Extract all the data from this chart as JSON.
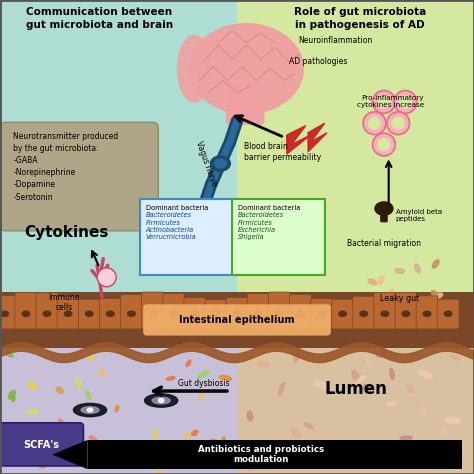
{
  "bg_left": "#aeddd4",
  "bg_right": "#d4e8a0",
  "title_left": "Communication between\ngut microbiota and brain",
  "title_right": "Role of gut microbiota\nin pathogenesis of AD",
  "nt_box_color": "#b0a080",
  "nt_text": "Neurotransmitter produced\nby the gut microbiota:\n-GABA\n-Norepinephrine\n-Dopamine\n-Serotonin",
  "brain_color": "#f0a0a0",
  "brain_dark": "#d07070",
  "vagus_color": "#1a4a6a",
  "vagus_light": "#2a6a9a",
  "dom_left_fc": "#ddeeff",
  "dom_left_ec": "#4488cc",
  "dom_right_fc": "#ddffcc",
  "dom_right_ec": "#44aa22",
  "cell_pink": "#f0b0c0",
  "cell_dark": "#cc6688",
  "gut_bg": "#7a4828",
  "gut_villi": "#b86830",
  "gut_villi_edge": "#7a4828",
  "gut_nucleus": "#5a3218",
  "gut_wavy": "#9a5828",
  "lumen_left_bg": "#c8c0d8",
  "lumen_right_bg": "#d8c0a0",
  "epi_label_bg": "#f4b06a",
  "scfa_bg": "#4a3a8a",
  "scfa_text": "#ffffff",
  "arrow_black": "#111111",
  "labels": {
    "cytokines": "Cytokines",
    "immune_cells": "Immune\ncells",
    "vagus_nerve": "Vagus nerve",
    "blood_brain": "Blood brain\nbarrier permeability",
    "neuroinflammation": "Neuroinflammation",
    "ad_pathologies": "AD pathologies",
    "pro_inflammatory": "Pro-inflammatory\ncytokines increase",
    "amyloid": "Amyloid beta\npeptides",
    "bacterial_migration": "Bacterial migration",
    "leaky_gut": "Leaky gut",
    "intestinal_epithelium": "Intestinal epithelium",
    "lumen": "Lumen",
    "scfas": "SCFA's",
    "gut_dysbiosis": "Gut dysbiosis",
    "antibiotics": "Antibiotics and probiotics\nmodulation"
  }
}
